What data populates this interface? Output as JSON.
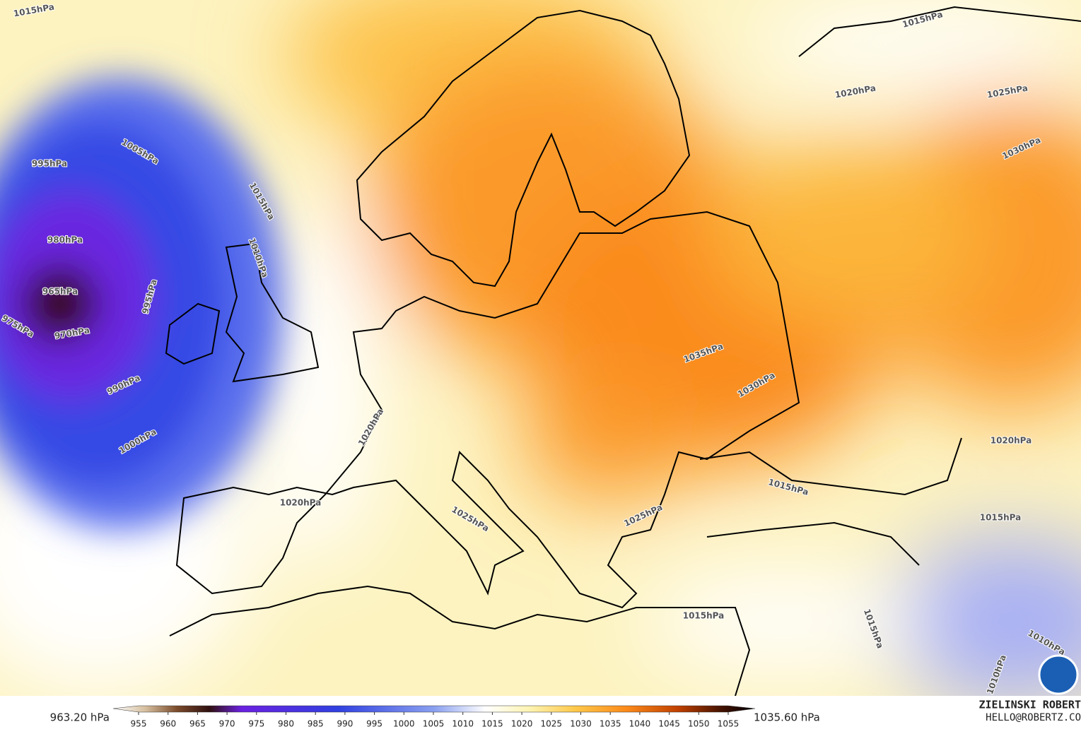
{
  "map": {
    "isobar_labels": [
      "1015hPa",
      "1005hPa",
      "995hPa",
      "1015hPa",
      "980hPa",
      "1010hPa",
      "965hPa",
      "995hPa",
      "975hPa",
      "970hPa",
      "990hPa",
      "1000hPa",
      "1020hPa",
      "1020hPa",
      "1025hPa",
      "1025hPa",
      "1030hPa",
      "1035hPa",
      "1015hPa",
      "1020hPa",
      "1025hPa",
      "1030hPa",
      "1020hPa",
      "1015hPa",
      "1015hPa",
      "1015hPa",
      "1015hPa",
      "1010hPa",
      "1010hPa"
    ]
  },
  "colorbar": {
    "min_label": "963.20 hPa",
    "max_label": "1035.60 hPa",
    "ticks": [
      955,
      960,
      965,
      970,
      975,
      980,
      985,
      990,
      995,
      1000,
      1005,
      1010,
      1015,
      1020,
      1025,
      1030,
      1035,
      1040,
      1045,
      1050,
      1055
    ]
  },
  "credits": {
    "name": "ZIELINSKI ROBERT",
    "email": "HELLO@ROBERTZ.CO"
  }
}
